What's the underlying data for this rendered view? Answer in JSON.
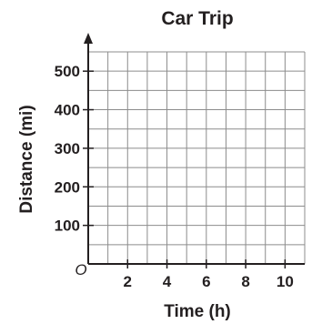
{
  "chart_data": {
    "type": "scatter",
    "title": "Car Trip",
    "xlabel": "Time (h)",
    "ylabel": "Distance (mi)",
    "origin_label": "O",
    "xlim": [
      0,
      11
    ],
    "ylim": [
      0,
      550
    ],
    "x_grid_step": 1,
    "y_grid_step": 50,
    "x_ticks": [
      2,
      4,
      6,
      8,
      10
    ],
    "x_tick_labels": [
      "2",
      "4",
      "6",
      "8",
      "10"
    ],
    "y_ticks": [
      100,
      200,
      300,
      400,
      500
    ],
    "y_tick_labels": [
      "100",
      "200",
      "300",
      "400",
      "500"
    ],
    "grid": true,
    "series": [],
    "colors": {
      "grid": "#8c8c8c",
      "axis": "#231f20",
      "text": "#231f20"
    }
  }
}
